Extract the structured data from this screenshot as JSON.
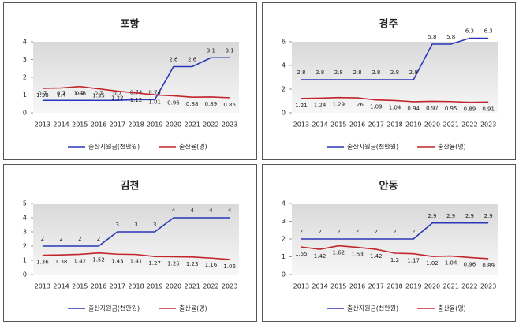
{
  "chart_data": [
    {
      "type": "line",
      "title": "포항",
      "categories": [
        "2013",
        "2014",
        "2015",
        "2016",
        "2017",
        "2018",
        "2019",
        "2020",
        "2021",
        "2022",
        "2023"
      ],
      "series": [
        {
          "name": "출산지원금(천만원)",
          "color": "#2a35b8",
          "values": [
            0.7,
            0.7,
            0.7,
            0.7,
            0.7,
            0.74,
            0.74,
            2.6,
            2.6,
            3.1,
            3.1
          ]
        },
        {
          "name": "출산율(명)",
          "color": "#c0262c",
          "values": [
            1.38,
            1.4,
            1.48,
            1.35,
            1.22,
            1.12,
            1.01,
            0.96,
            0.88,
            0.89,
            0.85
          ]
        }
      ],
      "ylim": [
        0,
        4
      ],
      "yticks": [
        0,
        1,
        2,
        3,
        4
      ],
      "legend": "bottom"
    },
    {
      "type": "line",
      "title": "경주",
      "categories": [
        "2013",
        "2014",
        "2015",
        "2016",
        "2017",
        "2018",
        "2019",
        "2020",
        "2021",
        "2022",
        "2023"
      ],
      "series": [
        {
          "name": "출산지원금(천만원)",
          "color": "#2a35b8",
          "values": [
            2.8,
            2.8,
            2.8,
            2.8,
            2.8,
            2.8,
            2.8,
            5.8,
            5.8,
            6.3,
            6.3
          ]
        },
        {
          "name": "출산율(명)",
          "color": "#c0262c",
          "values": [
            1.21,
            1.24,
            1.29,
            1.26,
            1.09,
            1.04,
            0.94,
            0.97,
            0.95,
            0.89,
            0.91
          ]
        }
      ],
      "ylim": [
        0,
        6
      ],
      "yticks": [
        0,
        2,
        4,
        6
      ],
      "legend": "bottom"
    },
    {
      "type": "line",
      "title": "김천",
      "categories": [
        "2013",
        "2014",
        "2015",
        "2016",
        "2017",
        "2018",
        "2019",
        "2020",
        "2021",
        "2022",
        "2023"
      ],
      "series": [
        {
          "name": "출산지원금(천만원)",
          "color": "#2a35b8",
          "values": [
            2,
            2,
            2,
            2,
            3,
            3,
            3,
            4,
            4,
            4,
            4
          ]
        },
        {
          "name": "출산율(명)",
          "color": "#c0262c",
          "values": [
            1.36,
            1.38,
            1.42,
            1.52,
            1.43,
            1.41,
            1.27,
            1.25,
            1.23,
            1.16,
            1.06
          ]
        }
      ],
      "ylim": [
        0,
        5
      ],
      "yticks": [
        0,
        1,
        2,
        3,
        4,
        5
      ],
      "legend": "bottom"
    },
    {
      "type": "line",
      "title": "안동",
      "categories": [
        "2013",
        "2014",
        "2015",
        "2016",
        "2017",
        "2018",
        "2019",
        "2020",
        "2021",
        "2022",
        "2023"
      ],
      "series": [
        {
          "name": "출산지원금(천만원)",
          "color": "#2a35b8",
          "values": [
            2,
            2,
            2,
            2,
            2,
            2,
            2,
            2.9,
            2.9,
            2.9,
            2.9
          ]
        },
        {
          "name": "출산율(명)",
          "color": "#c0262c",
          "values": [
            1.55,
            1.42,
            1.62,
            1.53,
            1.42,
            1.2,
            1.17,
            1.02,
            1.04,
            0.96,
            0.89
          ]
        }
      ],
      "ylim": [
        0,
        4
      ],
      "yticks": [
        0,
        1,
        2,
        3,
        4
      ],
      "legend": "bottom"
    }
  ]
}
